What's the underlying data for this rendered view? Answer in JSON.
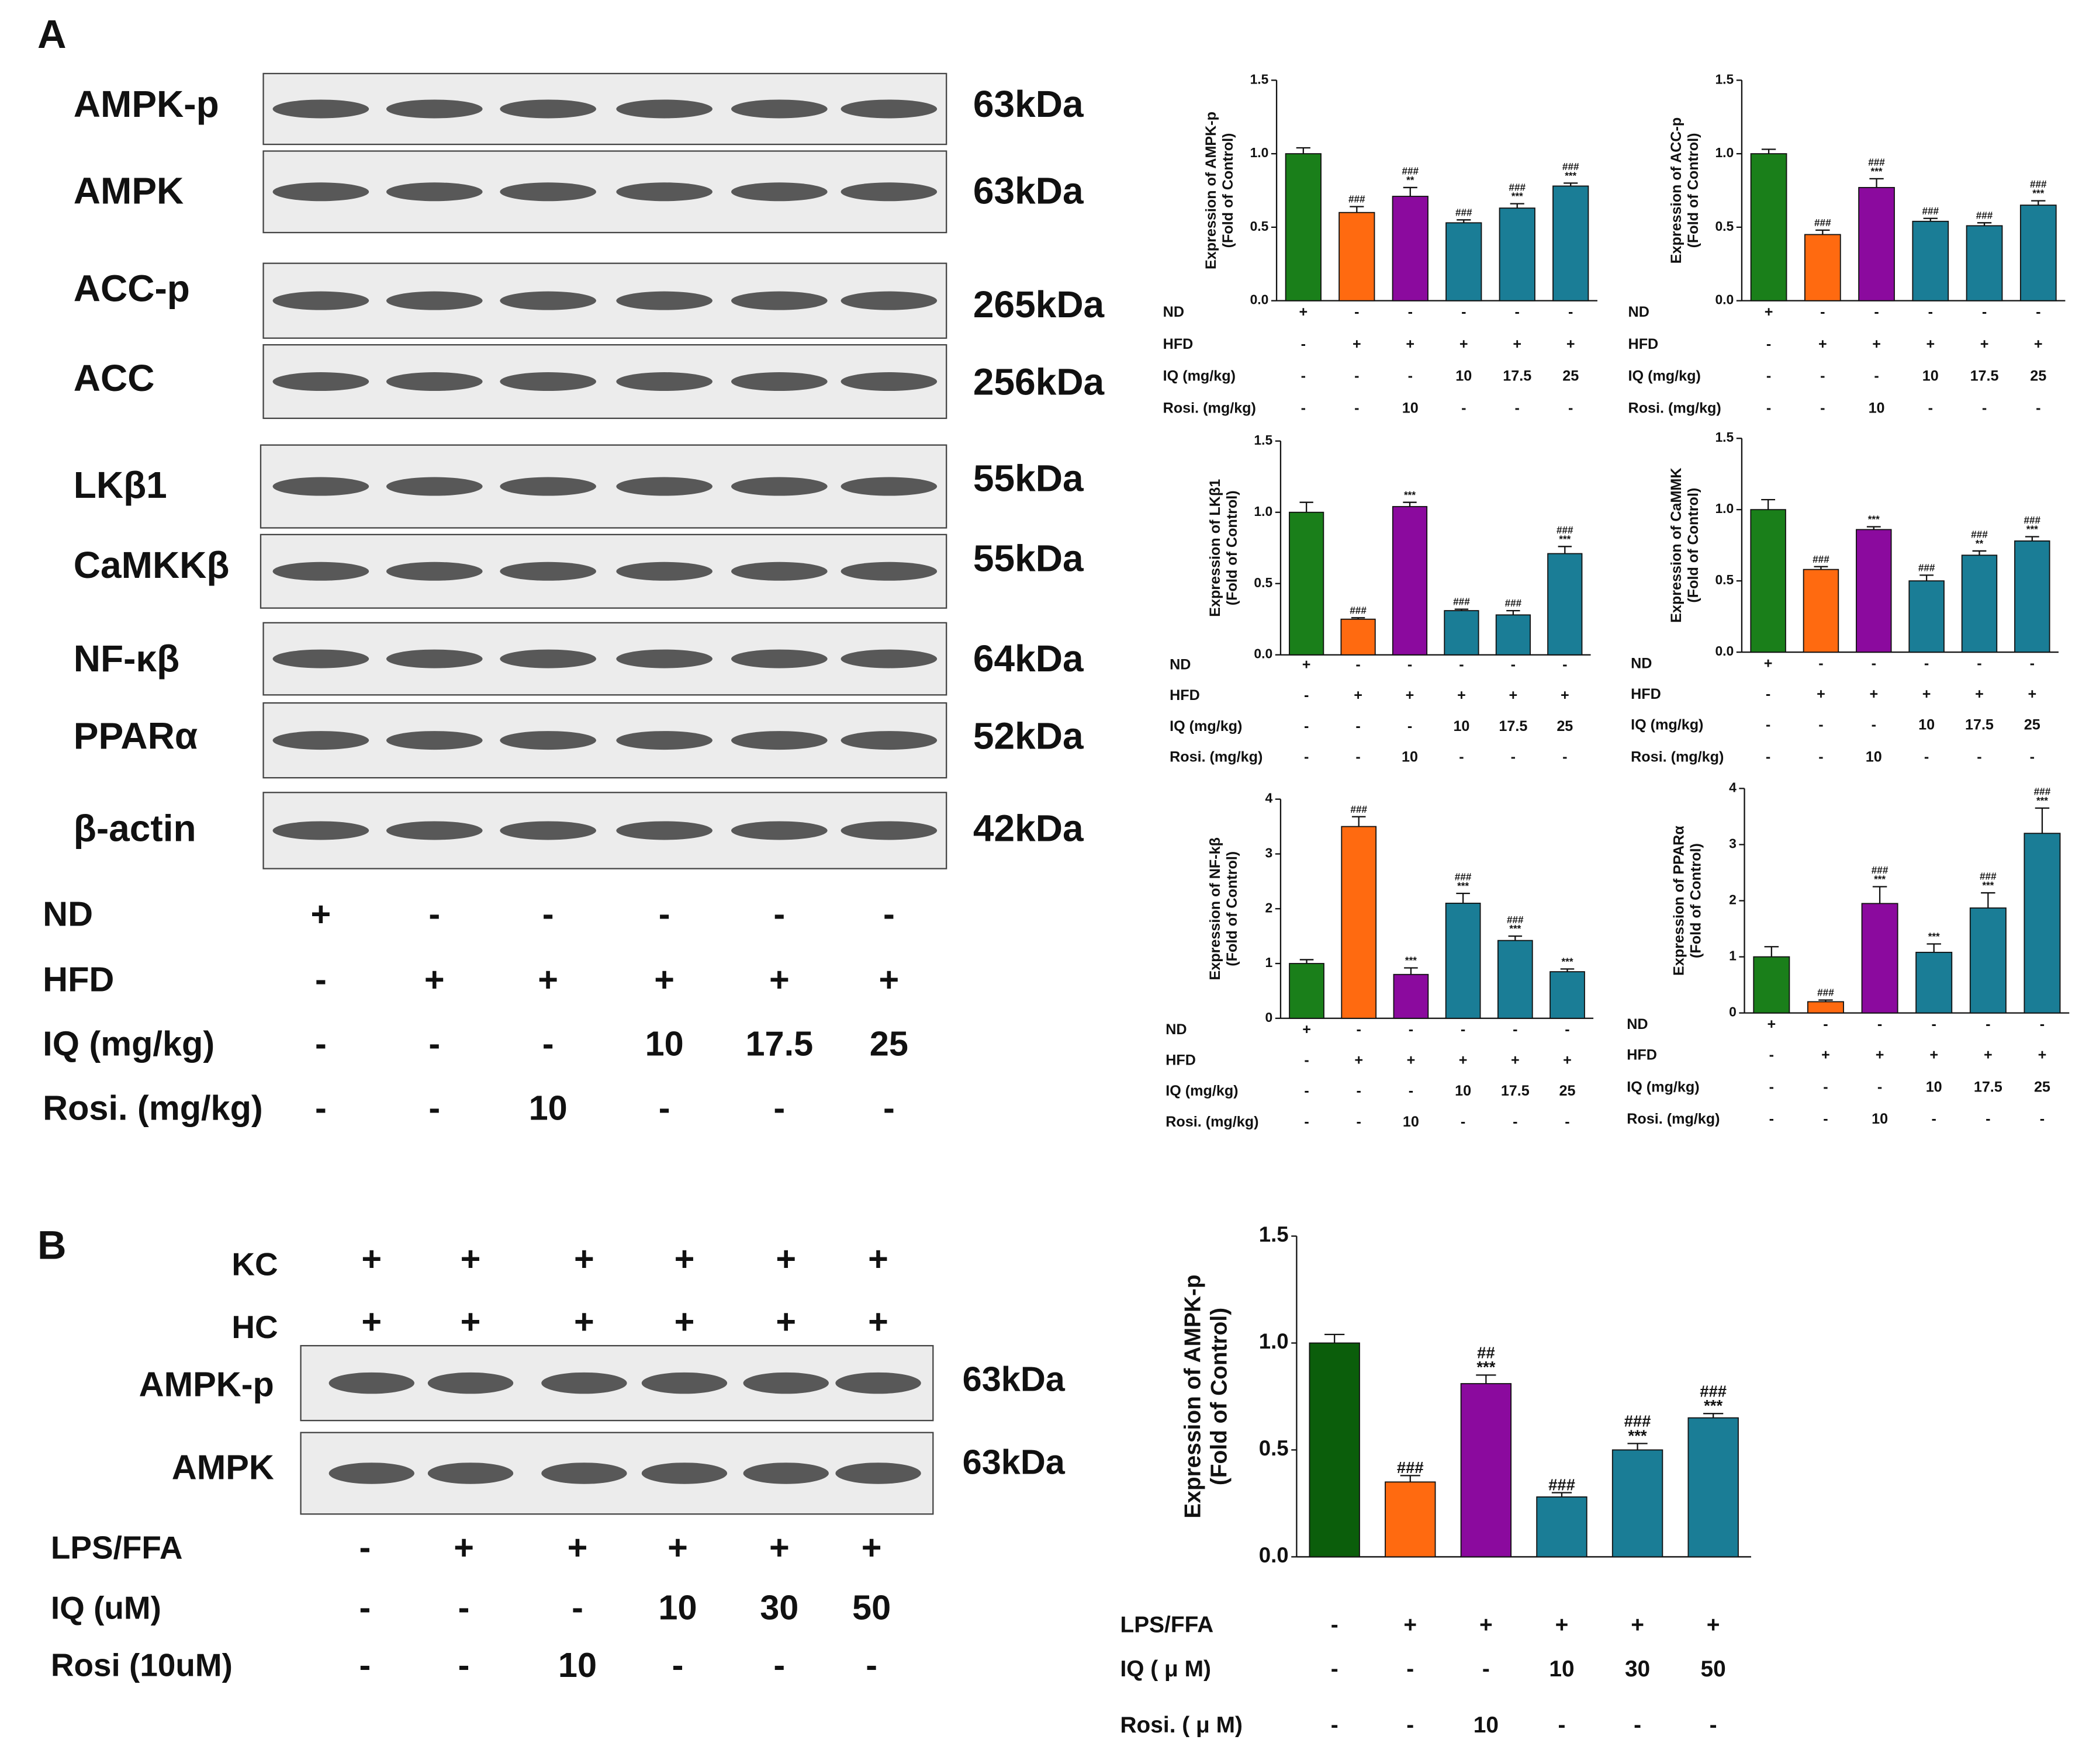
{
  "panel_a": {
    "label": "A",
    "blots": [
      {
        "label": "AMPK-p",
        "size": "63kDa"
      },
      {
        "label": "AMPK",
        "size": "63kDa"
      },
      {
        "label": "ACC-p",
        "size": "265kDa"
      },
      {
        "label": "ACC",
        "size": "256kDa"
      },
      {
        "label": "LKβ1",
        "size": "55kDa"
      },
      {
        "label": "CaMKKβ",
        "size": "55kDa"
      },
      {
        "label": "NF-κβ",
        "size": "64kDa"
      },
      {
        "label": "PPARα",
        "size": "52kDa"
      },
      {
        "label": "β-actin",
        "size": "42kDa"
      }
    ],
    "treatments": [
      {
        "label": "ND",
        "cells": [
          "+",
          "-",
          "-",
          "-",
          "-",
          "-"
        ]
      },
      {
        "label": "HFD",
        "cells": [
          "-",
          "+",
          "+",
          "+",
          "+",
          "+"
        ]
      },
      {
        "label": "IQ (mg/kg)",
        "cells": [
          "-",
          "-",
          "-",
          "10",
          "17.5",
          "25"
        ]
      },
      {
        "label": "Rosi. (mg/kg)",
        "cells": [
          "-",
          "-",
          "10",
          "-",
          "-",
          "-"
        ]
      }
    ]
  },
  "panel_b": {
    "label": "B",
    "top_rows": [
      {
        "label": "KC",
        "cells": [
          "+",
          "+",
          "+",
          "+",
          "+",
          "+"
        ]
      },
      {
        "label": "HC",
        "cells": [
          "+",
          "+",
          "+",
          "+",
          "+",
          "+"
        ]
      }
    ],
    "blots": [
      {
        "label": "AMPK-p",
        "size": "63kDa"
      },
      {
        "label": "AMPK",
        "size": "63kDa"
      }
    ],
    "treatments": [
      {
        "label": "LPS/FFA",
        "cells": [
          "-",
          "+",
          "+",
          "+",
          "+",
          "+"
        ]
      },
      {
        "label": "IQ (uM)",
        "cells": [
          "-",
          "-",
          "-",
          "10",
          "30",
          "50"
        ]
      },
      {
        "label": "Rosi (10uM)",
        "cells": [
          "-",
          "-",
          "10",
          "-",
          "-",
          "-"
        ]
      }
    ]
  },
  "chart_data": [
    {
      "type": "bar",
      "ylabel": [
        "Expression of AMPK-p",
        "(Fold of Control)"
      ],
      "categories": [
        null,
        null,
        null,
        null,
        null,
        null
      ],
      "values": [
        1.0,
        0.6,
        0.71,
        0.53,
        0.63,
        0.78
      ],
      "errors": [
        0.04,
        0.04,
        0.06,
        0.02,
        0.03,
        0.02
      ],
      "colors": [
        "#1a7f1a",
        "#ff6a10",
        "#8b0a9e",
        "#1a7d96",
        "#1a7d96",
        "#1a7d96"
      ],
      "annotations": [
        [],
        [
          "###"
        ],
        [
          "###",
          "**"
        ],
        [
          "###"
        ],
        [
          "###",
          "***"
        ],
        [
          "###",
          "***"
        ]
      ],
      "ylim": [
        0,
        1.5
      ],
      "yticks": [
        {
          "value": 0,
          "label": "0.0"
        },
        {
          "value": 0.5,
          "label": "0.5"
        },
        {
          "value": 1,
          "label": "1.0"
        },
        {
          "value": 1.5,
          "label": "1.5"
        }
      ],
      "treatments": [
        {
          "label": "ND",
          "cells": [
            "+",
            "-",
            "-",
            "-",
            "-",
            "-"
          ]
        },
        {
          "label": "HFD",
          "cells": [
            "-",
            "+",
            "+",
            "+",
            "+",
            "+"
          ]
        },
        {
          "label": "IQ (mg/kg)",
          "cells": [
            "-",
            "-",
            "-",
            "10",
            "17.5",
            "25"
          ]
        },
        {
          "label": "Rosi. (mg/kg)",
          "cells": [
            "-",
            "-",
            "10",
            "-",
            "-",
            "-"
          ]
        }
      ]
    },
    {
      "type": "bar",
      "ylabel": [
        "Expression of ACC-p",
        "(Fold of Control)"
      ],
      "categories": [
        null,
        null,
        null,
        null,
        null,
        null
      ],
      "values": [
        1.0,
        0.45,
        0.77,
        0.54,
        0.51,
        0.65
      ],
      "errors": [
        0.03,
        0.03,
        0.06,
        0.02,
        0.02,
        0.03
      ],
      "colors": [
        "#1a7f1a",
        "#ff6a10",
        "#8b0a9e",
        "#1a7d96",
        "#1a7d96",
        "#1a7d96"
      ],
      "annotations": [
        [],
        [
          "###"
        ],
        [
          "###",
          "***"
        ],
        [
          "###"
        ],
        [
          "###"
        ],
        [
          "###",
          "***"
        ]
      ],
      "ylim": [
        0,
        1.5
      ],
      "yticks": [
        {
          "value": 0,
          "label": "0.0"
        },
        {
          "value": 0.5,
          "label": "0.5"
        },
        {
          "value": 1,
          "label": "1.0"
        },
        {
          "value": 1.5,
          "label": "1.5"
        }
      ],
      "treatments": [
        {
          "label": "ND",
          "cells": [
            "+",
            "-",
            "-",
            "-",
            "-",
            "-"
          ]
        },
        {
          "label": "HFD",
          "cells": [
            "-",
            "+",
            "+",
            "+",
            "+",
            "+"
          ]
        },
        {
          "label": "IQ (mg/kg)",
          "cells": [
            "-",
            "-",
            "-",
            "10",
            "17.5",
            "25"
          ]
        },
        {
          "label": "Rosi. (mg/kg)",
          "cells": [
            "-",
            "-",
            "10",
            "-",
            "-",
            "-"
          ]
        }
      ]
    },
    {
      "type": "bar",
      "ylabel": [
        "Expression of LKβ1",
        "(Fold of Control)"
      ],
      "categories": [
        null,
        null,
        null,
        null,
        null,
        null
      ],
      "values": [
        1.0,
        0.25,
        1.04,
        0.31,
        0.28,
        0.71
      ],
      "errors": [
        0.07,
        0.01,
        0.03,
        0.01,
        0.03,
        0.05
      ],
      "colors": [
        "#1a7f1a",
        "#ff6a10",
        "#8b0a9e",
        "#1a7d96",
        "#1a7d96",
        "#1a7d96"
      ],
      "annotations": [
        [],
        [
          "###"
        ],
        [
          "***"
        ],
        [
          "###"
        ],
        [
          "###"
        ],
        [
          "###",
          "***"
        ]
      ],
      "ylim": [
        0,
        1.5
      ],
      "yticks": [
        {
          "value": 0,
          "label": "0.0"
        },
        {
          "value": 0.5,
          "label": "0.5"
        },
        {
          "value": 1,
          "label": "1.0"
        },
        {
          "value": 1.5,
          "label": "1.5"
        }
      ],
      "treatments": [
        {
          "label": "ND",
          "cells": [
            "+",
            "-",
            "-",
            "-",
            "-",
            "-"
          ]
        },
        {
          "label": "HFD",
          "cells": [
            "-",
            "+",
            "+",
            "+",
            "+",
            "+"
          ]
        },
        {
          "label": "IQ (mg/kg)",
          "cells": [
            "-",
            "-",
            "-",
            "10",
            "17.5",
            "25"
          ]
        },
        {
          "label": "Rosi. (mg/kg)",
          "cells": [
            "-",
            "-",
            "10",
            "-",
            "-",
            "-"
          ]
        }
      ]
    },
    {
      "type": "bar",
      "ylabel": [
        "Expression of CaMMK",
        "(Fold of Control)"
      ],
      "categories": [
        null,
        null,
        null,
        null,
        null,
        null
      ],
      "values": [
        1.0,
        0.58,
        0.86,
        0.5,
        0.68,
        0.78
      ],
      "errors": [
        0.07,
        0.02,
        0.02,
        0.04,
        0.03,
        0.03
      ],
      "colors": [
        "#1a7f1a",
        "#ff6a10",
        "#8b0a9e",
        "#1a7d96",
        "#1a7d96",
        "#1a7d96"
      ],
      "annotations": [
        [],
        [
          "###"
        ],
        [
          "***"
        ],
        [
          "###"
        ],
        [
          "###",
          "**"
        ],
        [
          "###",
          "***"
        ]
      ],
      "ylim": [
        0,
        1.5
      ],
      "yticks": [
        {
          "value": 0,
          "label": "0.0"
        },
        {
          "value": 0.5,
          "label": "0.5"
        },
        {
          "value": 1,
          "label": "1.0"
        },
        {
          "value": 1.5,
          "label": "1.5"
        }
      ],
      "treatments": [
        {
          "label": "ND",
          "cells": [
            "+",
            "-",
            "-",
            "-",
            "-",
            "-"
          ]
        },
        {
          "label": "HFD",
          "cells": [
            "-",
            "+",
            "+",
            "+",
            "+",
            "+"
          ]
        },
        {
          "label": "IQ (mg/kg)",
          "cells": [
            "-",
            "-",
            "-",
            "10",
            "17.5",
            "25"
          ]
        },
        {
          "label": "Rosi. (mg/kg)",
          "cells": [
            "-",
            "-",
            "10",
            "-",
            "-",
            "-"
          ]
        }
      ]
    },
    {
      "type": "bar",
      "ylabel": [
        "Expression of NF-kβ",
        "(Fold of Control)"
      ],
      "categories": [
        null,
        null,
        null,
        null,
        null,
        null
      ],
      "values": [
        1.0,
        3.5,
        0.8,
        2.1,
        1.42,
        0.85
      ],
      "errors": [
        0.07,
        0.18,
        0.12,
        0.18,
        0.08,
        0.05
      ],
      "colors": [
        "#1a7f1a",
        "#ff6a10",
        "#8b0a9e",
        "#1a7d96",
        "#1a7d96",
        "#1a7d96"
      ],
      "annotations": [
        [],
        [
          "###"
        ],
        [
          "***"
        ],
        [
          "###",
          "***"
        ],
        [
          "###",
          "***"
        ],
        [
          "***"
        ]
      ],
      "ylim": [
        0,
        4
      ],
      "yticks": [
        0,
        1,
        2,
        3,
        4
      ],
      "treatments": [
        {
          "label": "ND",
          "cells": [
            "+",
            "-",
            "-",
            "-",
            "-",
            "-"
          ]
        },
        {
          "label": "HFD",
          "cells": [
            "-",
            "+",
            "+",
            "+",
            "+",
            "+"
          ]
        },
        {
          "label": "IQ (mg/kg)",
          "cells": [
            "-",
            "-",
            "-",
            "10",
            "17.5",
            "25"
          ]
        },
        {
          "label": "Rosi. (mg/kg)",
          "cells": [
            "-",
            "-",
            "10",
            "-",
            "-",
            "-"
          ]
        }
      ]
    },
    {
      "type": "bar",
      "ylabel": [
        "Expression of PPARα",
        "(Fold of Control)"
      ],
      "categories": [
        null,
        null,
        null,
        null,
        null,
        null
      ],
      "values": [
        1.0,
        0.2,
        1.95,
        1.08,
        1.87,
        3.2
      ],
      "errors": [
        0.18,
        0.03,
        0.3,
        0.15,
        0.27,
        0.45
      ],
      "colors": [
        "#1a7f1a",
        "#ff6a10",
        "#8b0a9e",
        "#1a7d96",
        "#1a7d96",
        "#1a7d96"
      ],
      "annotations": [
        [],
        [
          "###"
        ],
        [
          "###",
          "***"
        ],
        [
          "***"
        ],
        [
          "###",
          "***"
        ],
        [
          "###",
          "***"
        ]
      ],
      "ylim": [
        0,
        4
      ],
      "yticks": [
        0,
        1,
        2,
        3,
        4
      ],
      "treatments": [
        {
          "label": "ND",
          "cells": [
            "+",
            "-",
            "-",
            "-",
            "-",
            "-"
          ]
        },
        {
          "label": "HFD",
          "cells": [
            "-",
            "+",
            "+",
            "+",
            "+",
            "+"
          ]
        },
        {
          "label": "IQ (mg/kg)",
          "cells": [
            "-",
            "-",
            "-",
            "10",
            "17.5",
            "25"
          ]
        },
        {
          "label": "Rosi. (mg/kg)",
          "cells": [
            "-",
            "-",
            "10",
            "-",
            "-",
            "-"
          ]
        }
      ]
    },
    {
      "type": "bar",
      "ylabel": [
        "Expression of AMPK-p",
        "(Fold of Control)"
      ],
      "categories": [
        null,
        null,
        null,
        null,
        null,
        null
      ],
      "values": [
        1.0,
        0.35,
        0.81,
        0.28,
        0.5,
        0.65
      ],
      "errors": [
        0.04,
        0.03,
        0.04,
        0.02,
        0.03,
        0.02
      ],
      "colors": [
        "#0b5e0b",
        "#ff6a10",
        "#8b0a9e",
        "#1a7d96",
        "#1a7d96",
        "#1a7d96"
      ],
      "annotations": [
        [],
        [
          "###"
        ],
        [
          "##",
          "***"
        ],
        [
          "###"
        ],
        [
          "###",
          "***"
        ],
        [
          "###",
          "***"
        ]
      ],
      "ylim": [
        0,
        1.5
      ],
      "yticks": [
        {
          "value": 0,
          "label": "0.0"
        },
        {
          "value": 0.5,
          "label": "0.5"
        },
        {
          "value": 1,
          "label": "1.0"
        },
        {
          "value": 1.5,
          "label": "1.5"
        }
      ],
      "treatments": [
        {
          "label": "LPS/FFA",
          "cells": [
            "-",
            "+",
            "+",
            "+",
            "+",
            "+"
          ]
        },
        {
          "label": "IQ ( μ M)",
          "cells": [
            "-",
            "-",
            "-",
            "10",
            "30",
            "50"
          ]
        },
        {
          "label": "Rosi. ( μ M)",
          "cells": [
            "-",
            "-",
            "10",
            "-",
            "-",
            "-"
          ]
        }
      ]
    }
  ]
}
